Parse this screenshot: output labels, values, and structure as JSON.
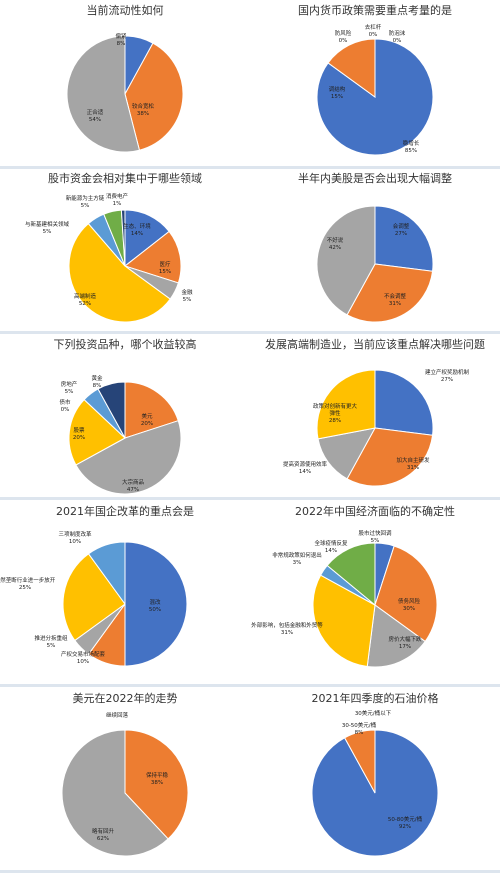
{
  "colors": {
    "blue": "#4472c4",
    "orange": "#ed7d31",
    "gray": "#a5a5a5",
    "yellow": "#ffc000",
    "lightblue": "#5b9bd5",
    "green": "#70ad47",
    "navy": "#264478"
  },
  "chart_data": [
    {
      "type": "pie",
      "title": "当前流动性如何",
      "slices": [
        {
          "label": "偏紧",
          "value": 8,
          "pct": "8%",
          "color": "#4472c4"
        },
        {
          "label": "较合宽松",
          "value": 38,
          "pct": "38%",
          "color": "#ed7d31"
        },
        {
          "label": "正合适",
          "value": 54,
          "pct": "54%",
          "color": "#a5a5a5"
        }
      ]
    },
    {
      "type": "pie",
      "title": "国内货币政策需要重点考量的是",
      "slices": [
        {
          "label": "稳增长",
          "value": 85,
          "pct": "85%",
          "color": "#4472c4"
        },
        {
          "label": "调结构",
          "value": 15,
          "pct": "15%",
          "color": "#ed7d31"
        },
        {
          "label": "防风险",
          "value": 0,
          "pct": "0%",
          "color": "#a5a5a5"
        },
        {
          "label": "去杠杆",
          "value": 0,
          "pct": "0%",
          "color": "#ffc000"
        },
        {
          "label": "防泡沫",
          "value": 0,
          "pct": "0%",
          "color": "#5b9bd5"
        }
      ]
    },
    {
      "type": "pie",
      "title": "股市资金会相对集中于哪些领域",
      "slices": [
        {
          "label": "生态、环境",
          "value": 14,
          "pct": "14%",
          "color": "#4472c4"
        },
        {
          "label": "医疗",
          "value": 15,
          "pct": "15%",
          "color": "#ed7d31"
        },
        {
          "label": "金融",
          "value": 5,
          "pct": "5%",
          "color": "#a5a5a5"
        },
        {
          "label": "高端制造",
          "value": 52,
          "pct": "52%",
          "color": "#ffc000"
        },
        {
          "label": "与新基建相关领域",
          "value": 5,
          "pct": "5%",
          "color": "#5b9bd5"
        },
        {
          "label": "新能源为主方链",
          "value": 5,
          "pct": "5%",
          "color": "#70ad47"
        },
        {
          "label": "消费电产",
          "value": 1,
          "pct": "1%",
          "color": "#264478"
        }
      ]
    },
    {
      "type": "pie",
      "title": "半年内美股是否会出现大幅调整",
      "slices": [
        {
          "label": "会调整",
          "value": 27,
          "pct": "27%",
          "color": "#4472c4"
        },
        {
          "label": "不会调整",
          "value": 31,
          "pct": "31%",
          "color": "#ed7d31"
        },
        {
          "label": "不好说",
          "value": 42,
          "pct": "42%",
          "color": "#a5a5a5"
        }
      ]
    },
    {
      "type": "pie",
      "title": "下列投资品种，哪个收益较高",
      "slices": [
        {
          "label": "美元",
          "value": 20,
          "pct": "20%",
          "color": "#ed7d31"
        },
        {
          "label": "大宗商品",
          "value": 47,
          "pct": "47%",
          "color": "#a5a5a5"
        },
        {
          "label": "股票",
          "value": 20,
          "pct": "20%",
          "color": "#ffc000"
        },
        {
          "label": "债市",
          "value": 0,
          "pct": "0%",
          "color": "#4472c4"
        },
        {
          "label": "房地产",
          "value": 5,
          "pct": "5%",
          "color": "#5b9bd5"
        },
        {
          "label": "黄金",
          "value": 8,
          "pct": "8%",
          "color": "#264478"
        }
      ]
    },
    {
      "type": "pie",
      "title": "发展高端制造业，当前应该重点解决哪些问题",
      "slices": [
        {
          "label": "建立产权奖励机制",
          "value": 27,
          "pct": "27%",
          "color": "#4472c4"
        },
        {
          "label": "加大自主研发",
          "value": 31,
          "pct": "31%",
          "color": "#ed7d31"
        },
        {
          "label": "提高资源使用效率",
          "value": 14,
          "pct": "14%",
          "color": "#a5a5a5"
        },
        {
          "label": "政策对创新有更大弹性",
          "value": 28,
          "pct": "28%",
          "color": "#ffc000"
        }
      ]
    },
    {
      "type": "pie",
      "title": "2021年国企改革的重点会是",
      "slices": [
        {
          "label": "混改",
          "value": 50,
          "pct": "50%",
          "color": "#4472c4"
        },
        {
          "label": "产权交易市场配套",
          "value": 10,
          "pct": "10%",
          "color": "#ed7d31"
        },
        {
          "label": "推进分拆重组",
          "value": 5,
          "pct": "5%",
          "color": "#a5a5a5"
        },
        {
          "label": "自然垄断行业进一步放开",
          "value": 25,
          "pct": "25%",
          "color": "#ffc000"
        },
        {
          "label": "三项制度改革",
          "value": 10,
          "pct": "10%",
          "color": "#5b9bd5"
        }
      ]
    },
    {
      "type": "pie",
      "title": "2022年中国经济面临的不确定性",
      "slices": [
        {
          "label": "股市过快回调",
          "value": 5,
          "pct": "5%",
          "color": "#4472c4"
        },
        {
          "label": "债务风险",
          "value": 30,
          "pct": "30%",
          "color": "#ed7d31"
        },
        {
          "label": "房价大幅下跌",
          "value": 17,
          "pct": "17%",
          "color": "#a5a5a5"
        },
        {
          "label": "外部影响，包括金融和外贸等",
          "value": 31,
          "pct": "31%",
          "color": "#ffc000"
        },
        {
          "label": "非常规政策如何退出",
          "value": 3,
          "pct": "3%",
          "color": "#5b9bd5"
        },
        {
          "label": "全球疫情反复",
          "value": 14,
          "pct": "14%",
          "color": "#70ad47"
        }
      ]
    },
    {
      "type": "pie",
      "title": "美元在2022年的走势",
      "slices": [
        {
          "label": "继续回落",
          "value": 0,
          "pct": "",
          "color": "#4472c4"
        },
        {
          "label": "保持平稳",
          "value": 38,
          "pct": "38%",
          "color": "#ed7d31"
        },
        {
          "label": "略有回升",
          "value": 62,
          "pct": "62%",
          "color": "#a5a5a5"
        }
      ]
    },
    {
      "type": "pie",
      "title": "2021年四季度的石油价格",
      "slices": [
        {
          "label": "50-80美元/桶",
          "value": 92,
          "pct": "92%",
          "color": "#4472c4"
        },
        {
          "label": "30-50美元/桶",
          "value": 8,
          "pct": "8%",
          "color": "#ed7d31"
        },
        {
          "label": "30美元/桶以下",
          "value": 0,
          "pct": "",
          "color": "#a5a5a5"
        }
      ]
    }
  ]
}
